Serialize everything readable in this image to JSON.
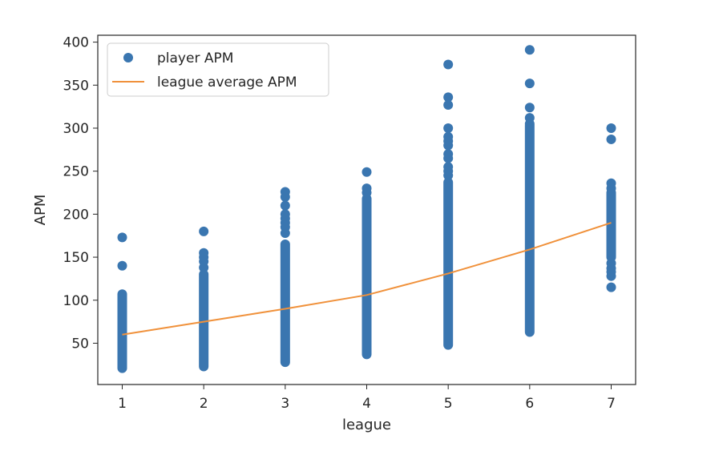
{
  "chart_data": {
    "type": "scatter",
    "title": "",
    "xlabel": "league",
    "ylabel": "APM",
    "xlim": [
      0.7,
      7.3
    ],
    "ylim": [
      2,
      408
    ],
    "xticks": [
      1,
      2,
      3,
      4,
      5,
      6,
      7
    ],
    "yticks": [
      50,
      100,
      150,
      200,
      250,
      300,
      350,
      400
    ],
    "grid": false,
    "legend_position": "upper-left",
    "series": [
      {
        "name": "player APM",
        "kind": "scatter",
        "color": "#3a76b0",
        "clusters": [
          {
            "x": 1,
            "range": [
              21,
              107
            ],
            "outliers": [
              140,
              173
            ]
          },
          {
            "x": 2,
            "range": [
              23,
              130
            ],
            "outliers": [
              138,
              145,
              150,
              155,
              180
            ]
          },
          {
            "x": 3,
            "range": [
              28,
              165
            ],
            "outliers": [
              178,
              185,
              190,
              195,
              200,
              210,
              220,
              226
            ]
          },
          {
            "x": 4,
            "range": [
              37,
              218
            ],
            "outliers": [
              225,
              230,
              249
            ]
          },
          {
            "x": 5,
            "range": [
              48,
              237
            ],
            "outliers": [
              245,
              250,
              255,
              265,
              270,
              280,
              285,
              290,
              300,
              327,
              336,
              374
            ]
          },
          {
            "x": 6,
            "range": [
              63,
              303
            ],
            "outliers": [
              305,
              312,
              324,
              352,
              391
            ]
          },
          {
            "x": 7,
            "range": [
              150,
              225
            ],
            "outliers": [
              115,
              128,
              133,
              137,
              143,
              230,
              236,
              287,
              300
            ]
          }
        ]
      },
      {
        "name": "league average APM",
        "kind": "line",
        "color": "#f0913b",
        "x": [
          1,
          2,
          3,
          4,
          5,
          6,
          7
        ],
        "y": [
          60,
          75,
          90,
          106,
          131,
          159,
          190
        ]
      }
    ]
  }
}
